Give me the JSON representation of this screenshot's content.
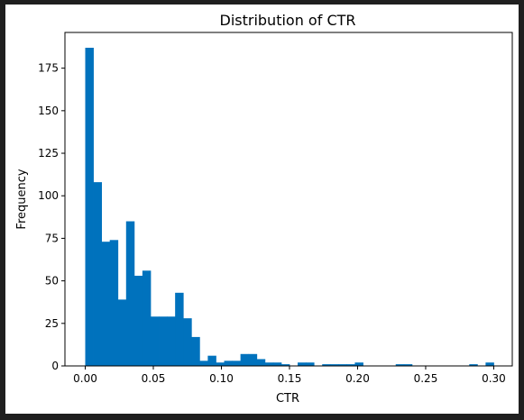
{
  "chart_data": {
    "type": "bar",
    "title": "Distribution of CTR",
    "xlabel": "CTR",
    "ylabel": "Frequency",
    "xlim": [
      -0.0149,
      0.3136
    ],
    "ylim": [
      0,
      196
    ],
    "bin_start": 0.0,
    "bin_width": 0.006,
    "counts": [
      187,
      108,
      73,
      74,
      39,
      85,
      53,
      56,
      29,
      29,
      29,
      43,
      28,
      17,
      3,
      6,
      2,
      3,
      3,
      7,
      7,
      4,
      2,
      2,
      1,
      0,
      2,
      2,
      0,
      1,
      1,
      1,
      1,
      2,
      0,
      0,
      0,
      0,
      1,
      1,
      0,
      0,
      0,
      0,
      0,
      0,
      0,
      1,
      0,
      2
    ],
    "xticks": [
      0.0,
      0.05,
      0.1,
      0.15,
      0.2,
      0.25,
      0.3
    ],
    "xtick_labels": [
      "0.00",
      "0.05",
      "0.10",
      "0.15",
      "0.20",
      "0.25",
      "0.30"
    ],
    "yticks": [
      0,
      25,
      50,
      75,
      100,
      125,
      150,
      175
    ],
    "ytick_labels": [
      "0",
      "25",
      "50",
      "75",
      "100",
      "125",
      "150",
      "175"
    ],
    "bar_color": "#0072BD",
    "grid": false,
    "legend": "none"
  }
}
